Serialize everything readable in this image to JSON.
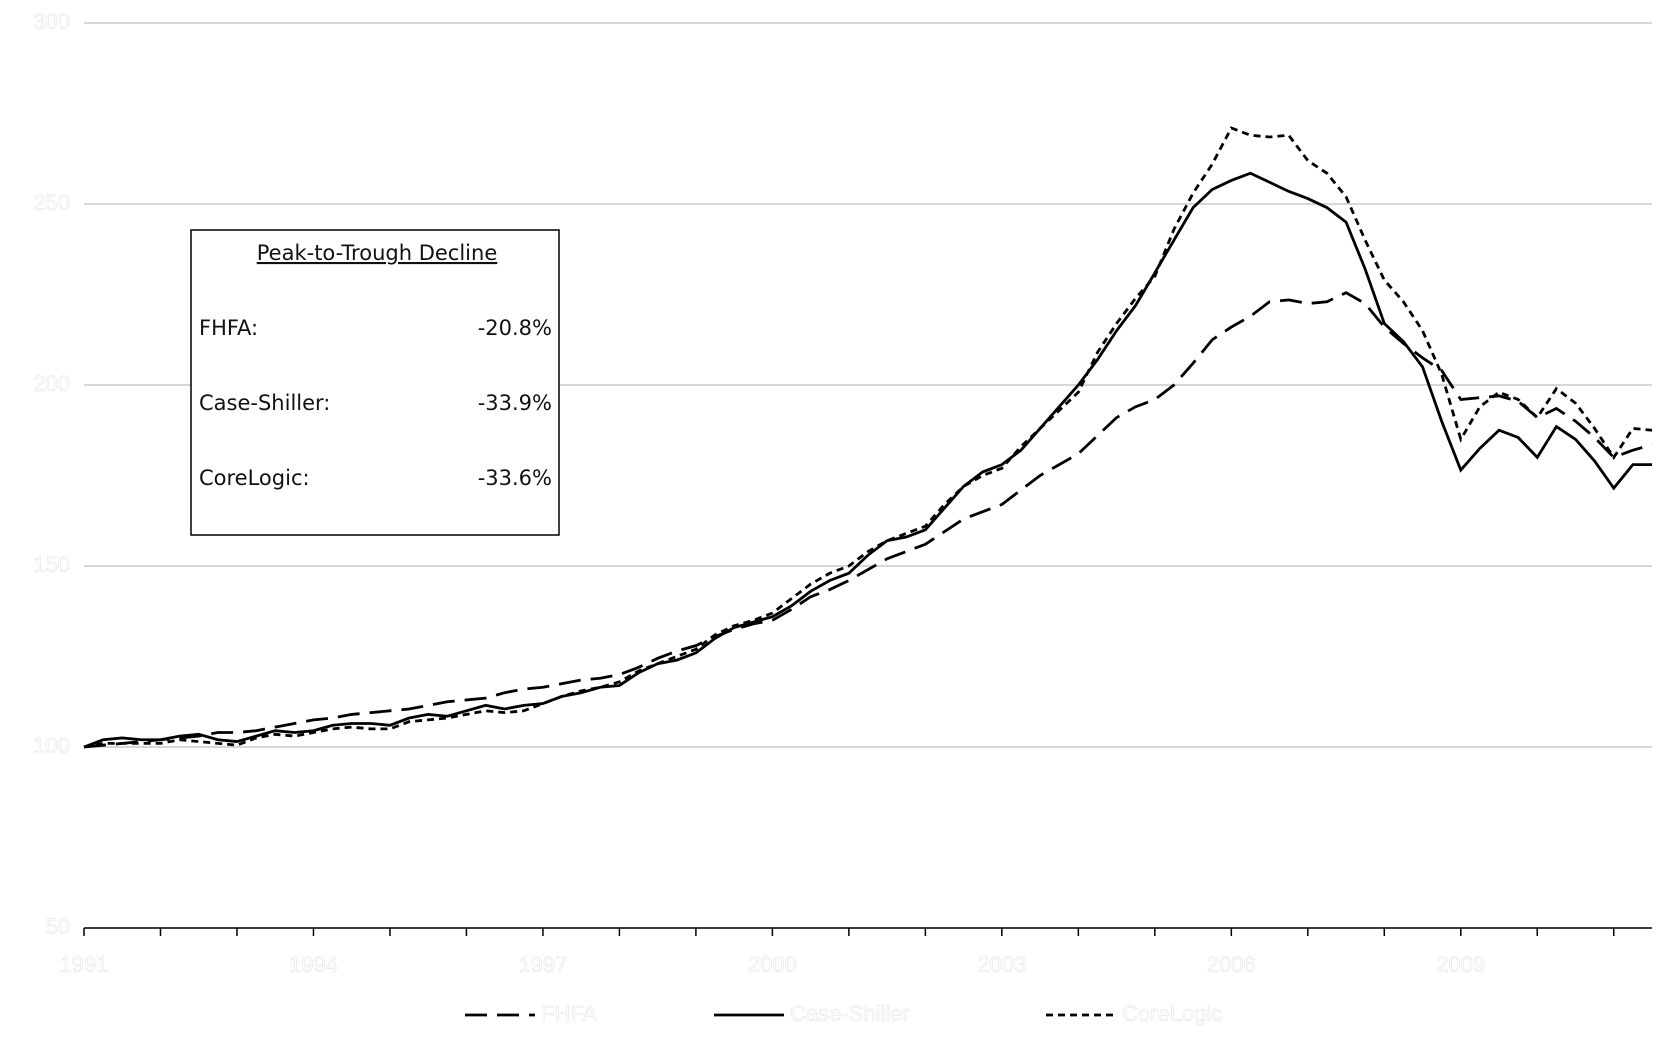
{
  "chart_data": {
    "type": "line",
    "x": [
      1991,
      1991.25,
      1991.5,
      1991.75,
      1992,
      1992.25,
      1992.5,
      1992.75,
      1993,
      1993.25,
      1993.5,
      1993.75,
      1994,
      1994.25,
      1994.5,
      1994.75,
      1995,
      1995.25,
      1995.5,
      1995.75,
      1996,
      1996.25,
      1996.5,
      1996.75,
      1997,
      1997.25,
      1997.5,
      1997.75,
      1998,
      1998.25,
      1998.5,
      1998.75,
      1999,
      1999.25,
      1999.5,
      1999.75,
      2000,
      2000.25,
      2000.5,
      2000.75,
      2001,
      2001.25,
      2001.5,
      2001.75,
      2002,
      2002.25,
      2002.5,
      2002.75,
      2003,
      2003.25,
      2003.5,
      2003.75,
      2004,
      2004.25,
      2004.5,
      2004.75,
      2005,
      2005.25,
      2005.5,
      2005.75,
      2006,
      2006.25,
      2006.5,
      2006.75,
      2007,
      2007.25,
      2007.5,
      2007.75,
      2008,
      2008.25,
      2008.5,
      2008.75,
      2009,
      2009.25,
      2009.5,
      2009.75,
      2010,
      2010.25,
      2010.5,
      2010.75,
      2011,
      2011.25,
      2011.5
    ],
    "series": [
      {
        "name": "FHFA",
        "color": "#000000",
        "dash": "dashed",
        "values": [
          100,
          100.5,
          101,
          101.5,
          102,
          102.5,
          103,
          104,
          104,
          104.5,
          105.5,
          106.5,
          107.5,
          108,
          109,
          109.5,
          110,
          110.5,
          111.5,
          112.5,
          113,
          113.5,
          115,
          116,
          116.5,
          117.5,
          118.5,
          119,
          120,
          122,
          124.5,
          126.5,
          128,
          130.5,
          132.5,
          134,
          135,
          138,
          141.5,
          143.5,
          146,
          149,
          152,
          154,
          156,
          159.5,
          163,
          165,
          167,
          171,
          175,
          178,
          181,
          186,
          191,
          194,
          196,
          200,
          206,
          212.5,
          216,
          219,
          223,
          223.5,
          222.5,
          223,
          225.5,
          222.5,
          216,
          211.5,
          207.5,
          204,
          196,
          196.5,
          197,
          195.5,
          191,
          193.5,
          190,
          185.5,
          180,
          182,
          183.5
        ]
      },
      {
        "name": "Case-Shiller",
        "color": "#000000",
        "dash": "solid",
        "values": [
          100,
          102,
          102.5,
          102,
          102,
          103,
          103.5,
          102,
          101.5,
          103,
          104.5,
          104,
          104.5,
          106,
          106.5,
          106.5,
          106,
          108,
          109,
          108.5,
          110,
          111.5,
          110.5,
          111.5,
          112,
          114,
          115,
          116.5,
          117,
          120.5,
          123,
          124,
          126,
          130,
          133,
          134.5,
          136,
          139,
          143,
          146,
          148,
          153,
          157,
          158,
          160,
          166,
          172,
          176,
          178,
          182,
          188,
          194,
          200,
          207,
          215,
          222,
          231,
          240,
          249,
          254,
          256.5,
          258.5,
          256,
          253.5,
          251.5,
          249,
          245,
          232,
          217,
          212,
          205,
          190,
          176.5,
          182.5,
          187.5,
          185.5,
          180,
          188.5,
          185,
          179,
          171.5,
          178,
          178
        ]
      },
      {
        "name": "CoreLogic",
        "color": "#000000",
        "dash": "dotted",
        "values": [
          100,
          101,
          101,
          101,
          101,
          102,
          101.5,
          101,
          100.5,
          102.5,
          103.5,
          103,
          104,
          105,
          105.5,
          105,
          105,
          107,
          107.5,
          108,
          109,
          110,
          109.5,
          110,
          112,
          114,
          115.5,
          116.5,
          118,
          121,
          123,
          125,
          127,
          131,
          133.5,
          135,
          137,
          141,
          145,
          148,
          150,
          154,
          157,
          159,
          161,
          167,
          172,
          175,
          177,
          183,
          188,
          193,
          198,
          209,
          217,
          224,
          230,
          243,
          253,
          261,
          271,
          269,
          268.5,
          269,
          262,
          258.5,
          252,
          240,
          229,
          223,
          215,
          203,
          185,
          194,
          198,
          196,
          191,
          199,
          195,
          188,
          180,
          188,
          187.5
        ]
      }
    ],
    "xlim": [
      1991,
      2011.5
    ],
    "xticks": [
      1991,
      1994,
      1997,
      2000,
      2003,
      2006,
      2009
    ],
    "xminor_ticks": [
      1992,
      1993,
      1995,
      1996,
      1998,
      1999,
      2001,
      2002,
      2004,
      2005,
      2007,
      2008,
      2010,
      2011
    ],
    "ylim": [
      50,
      300
    ],
    "yticks": [
      50,
      100,
      150,
      200,
      250,
      300
    ],
    "grid": true,
    "legend": "bottom",
    "annotation": {
      "title": "Peak-to-Trough Decline",
      "rows": [
        [
          "FHFA:",
          "-20.8%"
        ],
        [
          "Case-Shiller:",
          "-33.9%"
        ],
        [
          "CoreLogic:",
          "-33.6%"
        ]
      ]
    }
  }
}
